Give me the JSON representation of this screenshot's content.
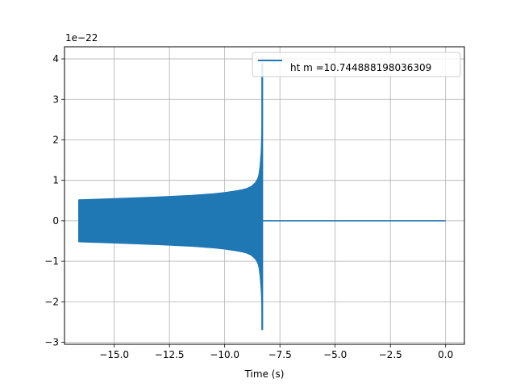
{
  "chart_data": {
    "type": "line",
    "title": "",
    "xlabel": "Time (s)",
    "ylabel": "",
    "y_multiplier_label": "1e−22",
    "xlim": [
      -17.25,
      0.85
    ],
    "ylim": [
      -3.05,
      4.3
    ],
    "x_ticks": [
      -15.0,
      -12.5,
      -10.0,
      -7.5,
      -5.0,
      -2.5,
      0.0
    ],
    "x_tick_labels": [
      "−15.0",
      "−12.5",
      "−10.0",
      "−7.5",
      "−5.0",
      "−2.5",
      "0.0"
    ],
    "y_ticks": [
      -3,
      -2,
      -1,
      0,
      1,
      2,
      3,
      4
    ],
    "y_tick_labels": [
      "−3",
      "−2",
      "−1",
      "0",
      "1",
      "2",
      "3",
      "4"
    ],
    "grid": true,
    "legend_position": "top-right",
    "series": [
      {
        "name": "ht m =10.744888198036309",
        "color": "#1f77b4",
        "signal_start": -16.6,
        "merger_time": -8.3,
        "end_time": 0.0,
        "envelope": {
          "x": [
            -16.6,
            -15.0,
            -13.0,
            -11.5,
            -10.5,
            -10.0,
            -9.5,
            -9.2,
            -9.0,
            -8.8,
            -8.7,
            -8.6,
            -8.5,
            -8.45,
            -8.4,
            -8.35
          ],
          "upper": [
            0.52,
            0.55,
            0.59,
            0.63,
            0.67,
            0.7,
            0.74,
            0.77,
            0.8,
            0.85,
            0.9,
            0.95,
            1.05,
            1.15,
            1.35,
            1.7
          ],
          "lower": [
            -0.52,
            -0.55,
            -0.59,
            -0.63,
            -0.67,
            -0.7,
            -0.74,
            -0.77,
            -0.8,
            -0.85,
            -0.9,
            -0.95,
            -1.05,
            -1.15,
            -1.35,
            -1.7
          ]
        },
        "peak_positive": 3.9,
        "peak_negative": -2.7
      }
    ]
  }
}
